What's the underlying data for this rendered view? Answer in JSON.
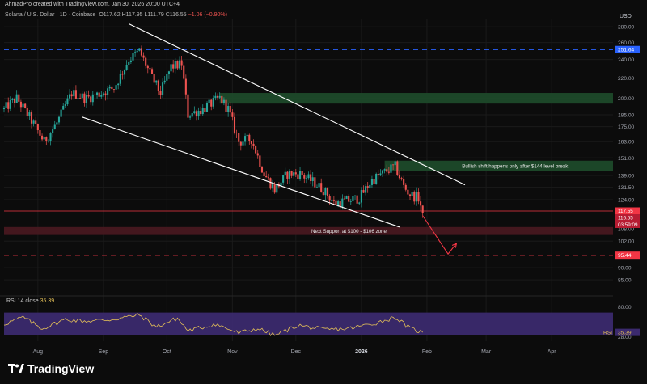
{
  "header": {
    "attribution": "AhmadPro created with TradingView.com, Jan 30, 2026 20:00 UTC+4"
  },
  "legend": {
    "symbol": "Solana / U.S. Dollar · 1D · Coinbase",
    "open": "O117.62",
    "high": "H117.95",
    "low": "L111.79",
    "close": "C116.55",
    "change": "−1.06 (−0.90%)"
  },
  "rsi_legend": {
    "label": "RSI 14 close",
    "value": "35.39"
  },
  "brand": {
    "name": "TradingView"
  },
  "colors": {
    "up": "#26a69a",
    "down": "#ef5350",
    "blue_line": "#2962ff",
    "red_line": "#f23645",
    "green_zone": "#1e4d2b",
    "red_zone": "#4a1820",
    "rsi_band": "#3b2a6e",
    "rsi_line": "#e5c158"
  },
  "chart_data": [
    {
      "type": "candlestick",
      "title": "Solana / U.S. Dollar · 1D · Coinbase",
      "currency": "USD",
      "y_scale": "log",
      "ylim": [
        80,
        290
      ],
      "y_ticks": [
        85.0,
        90.0,
        95.44,
        102.0,
        108.0,
        116.55,
        117.55,
        124.0,
        131.5,
        139.0,
        151.0,
        163.0,
        175.0,
        185.0,
        200.0,
        220.0,
        240.0,
        251.64,
        260.0,
        280.0
      ],
      "x_tick_labels": [
        "Aug",
        "Sep",
        "Oct",
        "Nov",
        "Dec",
        "2026",
        "Feb",
        "Mar",
        "Apr"
      ],
      "x_start": "2025-07-16",
      "x_end": "2026-04-30",
      "x_tick_dates": [
        "2025-08-01",
        "2025-09-01",
        "2025-10-01",
        "2025-11-01",
        "2025-12-01",
        "2026-01-01",
        "2026-02-01",
        "2026-03-01",
        "2026-04-01"
      ],
      "anchors": [
        {
          "date": "2025-07-16",
          "close": 190
        },
        {
          "date": "2025-07-22",
          "close": 200
        },
        {
          "date": "2025-07-29",
          "close": 180
        },
        {
          "date": "2025-08-04",
          "close": 163
        },
        {
          "date": "2025-08-10",
          "close": 178
        },
        {
          "date": "2025-08-17",
          "close": 205
        },
        {
          "date": "2025-08-24",
          "close": 200
        },
        {
          "date": "2025-08-31",
          "close": 205
        },
        {
          "date": "2025-09-06",
          "close": 210
        },
        {
          "date": "2025-09-13",
          "close": 240
        },
        {
          "date": "2025-09-18",
          "close": 250
        },
        {
          "date": "2025-09-24",
          "close": 220
        },
        {
          "date": "2025-09-28",
          "close": 205
        },
        {
          "date": "2025-10-03",
          "close": 232
        },
        {
          "date": "2025-10-08",
          "close": 235
        },
        {
          "date": "2025-10-11",
          "close": 185
        },
        {
          "date": "2025-10-18",
          "close": 190
        },
        {
          "date": "2025-10-26",
          "close": 200
        },
        {
          "date": "2025-10-30",
          "close": 190
        },
        {
          "date": "2025-11-04",
          "close": 163
        },
        {
          "date": "2025-11-10",
          "close": 165
        },
        {
          "date": "2025-11-16",
          "close": 140
        },
        {
          "date": "2025-11-21",
          "close": 130
        },
        {
          "date": "2025-11-27",
          "close": 140
        },
        {
          "date": "2025-12-03",
          "close": 140
        },
        {
          "date": "2025-12-09",
          "close": 135
        },
        {
          "date": "2025-12-14",
          "close": 130
        },
        {
          "date": "2025-12-19",
          "close": 122
        },
        {
          "date": "2025-12-24",
          "close": 123
        },
        {
          "date": "2025-12-31",
          "close": 125
        },
        {
          "date": "2026-01-06",
          "close": 136
        },
        {
          "date": "2026-01-13",
          "close": 142
        },
        {
          "date": "2026-01-17",
          "close": 145
        },
        {
          "date": "2026-01-21",
          "close": 132
        },
        {
          "date": "2026-01-24",
          "close": 127
        },
        {
          "date": "2026-01-28",
          "close": 125
        },
        {
          "date": "2026-01-30",
          "close": 116.55
        }
      ],
      "horizontal_lines": [
        {
          "price": 251.64,
          "style": "dashed",
          "color": "#2962ff",
          "label": "251.64"
        },
        {
          "price": 95.44,
          "style": "dashed",
          "color": "#f23645",
          "label": "95.44"
        },
        {
          "price": 117.55,
          "style": "solid",
          "color": "#f23645"
        }
      ],
      "price_labels": [
        {
          "price": 117.55,
          "text": "117.55",
          "color": "#f23645"
        },
        {
          "price": 116.55,
          "text": "116.55",
          "color": "#f23645"
        },
        {
          "price": 114.8,
          "text": "03:59:09",
          "color": "#f23645"
        }
      ],
      "zones": [
        {
          "from": "2025-10-26",
          "to": "2026-05-01",
          "low": 195,
          "high": 205,
          "color": "#1e4d2b"
        },
        {
          "from": "2026-01-12",
          "to": "2026-05-01",
          "low": 142,
          "high": 149,
          "color": "#1e4d2b",
          "label": "Bullish shift happens only after $144 level break"
        },
        {
          "from": "2025-07-16",
          "to": "2026-05-01",
          "low": 105,
          "high": 109,
          "color": "#4a1820",
          "label": "Next Support at $100 - $106 zone"
        }
      ],
      "trendlines": [
        {
          "from": {
            "date": "2025-09-13",
            "price": 284
          },
          "to": {
            "date": "2026-02-19",
            "price": 133
          },
          "color": "#ffffff"
        },
        {
          "from": {
            "date": "2025-08-22",
            "price": 183
          },
          "to": {
            "date": "2026-01-19",
            "price": 109
          },
          "color": "#ffffff"
        }
      ],
      "projection_arrow": [
        {
          "date": "2026-01-30",
          "price": 115
        },
        {
          "date": "2026-02-11",
          "price": 96
        },
        {
          "date": "2026-02-15",
          "price": 101
        }
      ]
    },
    {
      "type": "line",
      "title": "RSI 14 close",
      "ylim": [
        20,
        85
      ],
      "y_ticks": [
        28,
        40,
        80
      ],
      "band": [
        30,
        70
      ],
      "last_value": 35.39,
      "anchors": [
        {
          "date": "2025-07-16",
          "value": 50
        },
        {
          "date": "2025-07-25",
          "value": 62
        },
        {
          "date": "2025-08-03",
          "value": 42
        },
        {
          "date": "2025-08-14",
          "value": 58
        },
        {
          "date": "2025-08-24",
          "value": 55
        },
        {
          "date": "2025-09-05",
          "value": 58
        },
        {
          "date": "2025-09-18",
          "value": 66
        },
        {
          "date": "2025-09-26",
          "value": 45
        },
        {
          "date": "2025-10-06",
          "value": 60
        },
        {
          "date": "2025-10-11",
          "value": 38
        },
        {
          "date": "2025-10-24",
          "value": 50
        },
        {
          "date": "2025-11-04",
          "value": 34
        },
        {
          "date": "2025-11-13",
          "value": 42
        },
        {
          "date": "2025-11-21",
          "value": 30
        },
        {
          "date": "2025-12-02",
          "value": 48
        },
        {
          "date": "2025-12-14",
          "value": 40
        },
        {
          "date": "2025-12-26",
          "value": 42
        },
        {
          "date": "2026-01-08",
          "value": 52
        },
        {
          "date": "2026-01-17",
          "value": 62
        },
        {
          "date": "2026-01-24",
          "value": 42
        },
        {
          "date": "2026-01-30",
          "value": 35.39
        }
      ]
    }
  ]
}
